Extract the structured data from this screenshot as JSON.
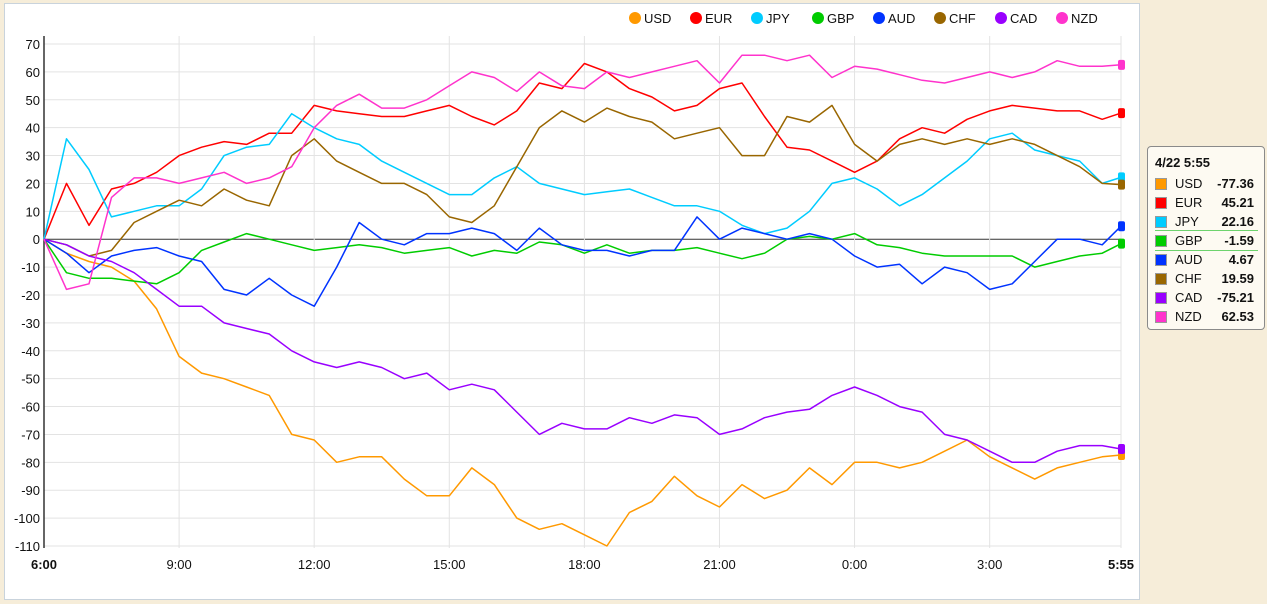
{
  "chart_data": {
    "type": "line",
    "title": "",
    "xlabel": "",
    "ylabel": "",
    "ylim": [
      -110,
      70
    ],
    "yticks": [
      70,
      60,
      50,
      40,
      30,
      20,
      10,
      0,
      -10,
      -20,
      -30,
      -40,
      -50,
      -60,
      -70,
      -80,
      -90,
      -100,
      -110
    ],
    "x_hours_from_start": [
      0,
      0.5,
      1,
      1.5,
      2,
      2.5,
      3,
      3.5,
      4,
      4.5,
      5,
      5.5,
      6,
      6.5,
      7,
      7.5,
      8,
      8.5,
      9,
      9.5,
      10,
      10.5,
      11,
      11.5,
      12,
      12.5,
      13,
      13.5,
      14,
      14.5,
      15,
      15.5,
      16,
      16.5,
      17,
      17.5,
      18,
      18.5,
      19,
      19.5,
      20,
      20.5,
      21,
      21.5,
      22,
      22.5,
      23,
      23.5,
      23.9167
    ],
    "xticks": [
      {
        "label": "6:00",
        "hour": 0,
        "bold": true
      },
      {
        "label": "9:00",
        "hour": 3
      },
      {
        "label": "12:00",
        "hour": 6
      },
      {
        "label": "15:00",
        "hour": 9
      },
      {
        "label": "18:00",
        "hour": 12
      },
      {
        "label": "21:00",
        "hour": 15
      },
      {
        "label": "0:00",
        "hour": 18
      },
      {
        "label": "3:00",
        "hour": 21
      },
      {
        "label": "5:55",
        "hour": 23.9167,
        "bold": true
      }
    ],
    "grid": true,
    "legend_position": "top-right",
    "series": [
      {
        "name": "USD",
        "color": "#ff9900",
        "values": [
          0,
          -5,
          -8,
          -10,
          -15,
          -25,
          -42,
          -48,
          -50,
          -53,
          -56,
          -70,
          -72,
          -80,
          -78,
          -78,
          -86,
          -92,
          -92,
          -82,
          -88,
          -100,
          -104,
          -102,
          -106,
          -110,
          -98,
          -94,
          -85,
          -92,
          -96,
          -88,
          -93,
          -90,
          -82,
          -88,
          -80,
          -80,
          -82,
          -80,
          -76,
          -72,
          -78,
          -82,
          -86,
          -82,
          -80,
          -78,
          -77.36
        ]
      },
      {
        "name": "EUR",
        "color": "#ff0000",
        "values": [
          0,
          20,
          5,
          18,
          20,
          24,
          30,
          33,
          35,
          34,
          38,
          38,
          48,
          46,
          45,
          44,
          44,
          46,
          48,
          44,
          41,
          46,
          56,
          54,
          63,
          60,
          54,
          51,
          46,
          48,
          54,
          56,
          44,
          33,
          32,
          28,
          24,
          28,
          36,
          40,
          38,
          43,
          46,
          48,
          47,
          46,
          46,
          43,
          45.21
        ]
      },
      {
        "name": "JPY",
        "color": "#00ccff",
        "values": [
          0,
          36,
          25,
          8,
          10,
          12,
          12,
          18,
          30,
          33,
          34,
          45,
          40,
          36,
          34,
          28,
          24,
          20,
          16,
          16,
          22,
          26,
          20,
          18,
          16,
          17,
          18,
          15,
          12,
          12,
          10,
          5,
          2,
          4,
          10,
          20,
          22,
          18,
          12,
          16,
          22,
          28,
          36,
          38,
          32,
          30,
          28,
          20,
          22.16
        ]
      },
      {
        "name": "GBP",
        "color": "#00cc00",
        "values": [
          0,
          -12,
          -14,
          -14,
          -15,
          -16,
          -12,
          -4,
          -1,
          2,
          0,
          -2,
          -4,
          -3,
          -2,
          -3,
          -5,
          -4,
          -3,
          -6,
          -4,
          -5,
          -1,
          -2,
          -5,
          -2,
          -5,
          -4,
          -4,
          -3,
          -5,
          -7,
          -5,
          0,
          1,
          0,
          2,
          -2,
          -3,
          -5,
          -6,
          -6,
          -6,
          -6,
          -10,
          -8,
          -6,
          -5,
          -1.59
        ]
      },
      {
        "name": "AUD",
        "color": "#0033ff",
        "values": [
          0,
          -5,
          -12,
          -6,
          -4,
          -3,
          -6,
          -8,
          -18,
          -20,
          -14,
          -20,
          -24,
          -10,
          6,
          0,
          -2,
          2,
          2,
          4,
          2,
          -4,
          4,
          -2,
          -4,
          -4,
          -6,
          -4,
          -4,
          8,
          0,
          4,
          2,
          0,
          2,
          0,
          -6,
          -10,
          -9,
          -16,
          -10,
          -12,
          -18,
          -16,
          -8,
          0,
          0,
          -2,
          4.67
        ]
      },
      {
        "name": "CHF",
        "color": "#996600",
        "values": [
          0,
          -2,
          -6,
          -4,
          6,
          10,
          14,
          12,
          18,
          14,
          12,
          30,
          36,
          28,
          24,
          20,
          20,
          16,
          8,
          6,
          12,
          26,
          40,
          46,
          42,
          47,
          44,
          42,
          36,
          38,
          40,
          30,
          30,
          44,
          42,
          48,
          34,
          28,
          34,
          36,
          34,
          36,
          34,
          36,
          34,
          30,
          26,
          20,
          19.59
        ]
      },
      {
        "name": "CAD",
        "color": "#9900ff",
        "values": [
          0,
          -2,
          -6,
          -8,
          -12,
          -18,
          -24,
          -24,
          -30,
          -32,
          -34,
          -40,
          -44,
          -46,
          -44,
          -46,
          -50,
          -48,
          -54,
          -52,
          -54,
          -62,
          -70,
          -66,
          -68,
          -68,
          -64,
          -66,
          -63,
          -64,
          -70,
          -68,
          -64,
          -62,
          -61,
          -56,
          -53,
          -56,
          -60,
          -62,
          -70,
          -72,
          -76,
          -80,
          -80,
          -76,
          -74,
          -74,
          -75.21
        ]
      },
      {
        "name": "NZD",
        "color": "#ff33cc",
        "values": [
          0,
          -18,
          -16,
          15,
          22,
          22,
          20,
          22,
          24,
          20,
          22,
          26,
          40,
          48,
          52,
          47,
          47,
          50,
          55,
          60,
          58,
          53,
          60,
          55,
          54,
          60,
          58,
          60,
          62,
          64,
          56,
          66,
          66,
          64,
          66,
          58,
          62,
          61,
          59,
          57,
          56,
          58,
          60,
          58,
          60,
          64,
          62,
          62,
          62.53
        ]
      }
    ]
  },
  "tooltip": {
    "title": "4/22 5:55",
    "highlighted": "GBP",
    "rows": [
      {
        "name": "USD",
        "value": "-77.36"
      },
      {
        "name": "EUR",
        "value": "45.21"
      },
      {
        "name": "JPY",
        "value": "22.16"
      },
      {
        "name": "GBP",
        "value": "-1.59"
      },
      {
        "name": "AUD",
        "value": "4.67"
      },
      {
        "name": "CHF",
        "value": "19.59"
      },
      {
        "name": "CAD",
        "value": "-75.21"
      },
      {
        "name": "NZD",
        "value": "62.53"
      }
    ]
  }
}
